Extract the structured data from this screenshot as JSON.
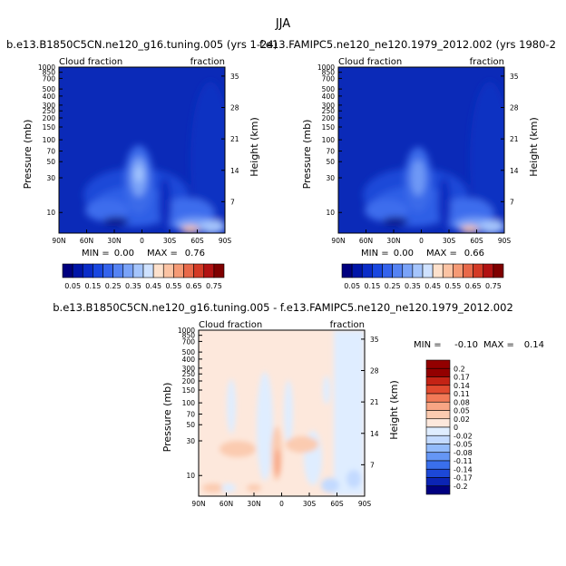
{
  "figure": {
    "title": "JJA",
    "panel_titles": [
      "b.e13.B1850C5CN.ne120_g16.tuning.005 (yrs 1-24)",
      "f.e13.FAMIPC5.ne120_ne120.1979_2012.002 (yrs 1980-2",
      "b.e13.B1850C5CN.ne120_g16.tuning.005 - f.e13.FAMIPC5.ne120_ne120.1979_2012.002"
    ]
  },
  "colors": {
    "seq": [
      "#00007f",
      "#0015a8",
      "#0a2cc8",
      "#1947e0",
      "#3463ec",
      "#5583f3",
      "#7aa3f8",
      "#a5c5fc",
      "#cfe2ff",
      "#fde1cc",
      "#fbc3a3",
      "#f59a75",
      "#e8694a",
      "#d33a26",
      "#b11212",
      "#7f0000"
    ],
    "diff": [
      "#000080",
      "#0b24b5",
      "#1c48d7",
      "#3a6fec",
      "#6596f5",
      "#93bbfb",
      "#c3daff",
      "#dfedff",
      "#fde8dc",
      "#fbcbb0",
      "#f8a584",
      "#f27a57",
      "#e14a2f",
      "#c42315",
      "#930000"
    ]
  },
  "chart_data": [
    {
      "type": "heatmap",
      "panel": "top-left",
      "title_left": "Cloud fraction",
      "title_right": "fraction",
      "ylabel": "Pressure (mb)",
      "ylabel_right": "Height (km)",
      "xticks": [
        "90N",
        "60N",
        "30N",
        "0",
        "30S",
        "60S",
        "90S"
      ],
      "yticks": [
        "10",
        "30",
        "50",
        "70",
        "100",
        "150",
        "200",
        "250",
        "300",
        "400",
        "500",
        "700",
        "850",
        "1000"
      ],
      "yticks_right": [
        "35",
        "28",
        "21",
        "14",
        "7"
      ],
      "stats": {
        "min_label": "MIN =",
        "min": "0.00",
        "max_label": "MAX =",
        "max": "0.76"
      }
    },
    {
      "type": "heatmap",
      "panel": "top-right",
      "title_left": "Cloud fraction",
      "title_right": "fraction",
      "ylabel": "Pressure (mb)",
      "ylabel_right": "Height (km)",
      "xticks": [
        "90N",
        "60N",
        "30N",
        "0",
        "30S",
        "60S",
        "90S"
      ],
      "yticks": [
        "10",
        "30",
        "50",
        "70",
        "100",
        "150",
        "200",
        "250",
        "300",
        "400",
        "500",
        "700",
        "850",
        "1000"
      ],
      "yticks_right": [
        "35",
        "28",
        "21",
        "14",
        "7"
      ],
      "stats": {
        "min_label": "MIN =",
        "min": "0.00",
        "max_label": "MAX =",
        "max": "0.66"
      }
    },
    {
      "type": "heatmap",
      "panel": "bottom-difference",
      "title_left": "Cloud fraction",
      "title_right": "fraction",
      "ylabel": "Pressure (mb)",
      "ylabel_right": "Height (km)",
      "xticks": [
        "90N",
        "60N",
        "30N",
        "0",
        "30S",
        "60S",
        "90S"
      ],
      "yticks": [
        "10",
        "30",
        "50",
        "70",
        "100",
        "150",
        "200",
        "250",
        "300",
        "400",
        "500",
        "700",
        "850",
        "1000"
      ],
      "yticks_right": [
        "35",
        "28",
        "21",
        "14",
        "7"
      ],
      "stats": {
        "min_label": "MIN =",
        "min": "-0.10",
        "max_label": "MAX =",
        "max": "0.14"
      }
    }
  ],
  "colorbars": {
    "sequential_labels": [
      "0.05",
      "0.15",
      "0.25",
      "0.35",
      "0.45",
      "0.55",
      "0.65",
      "0.75"
    ],
    "difference_labels": [
      "0.2",
      "0.17",
      "0.14",
      "0.11",
      "0.08",
      "0.05",
      "0.02",
      "0",
      "-0.02",
      "-0.05",
      "-0.08",
      "-0.11",
      "-0.14",
      "-0.17",
      "-0.2"
    ]
  }
}
